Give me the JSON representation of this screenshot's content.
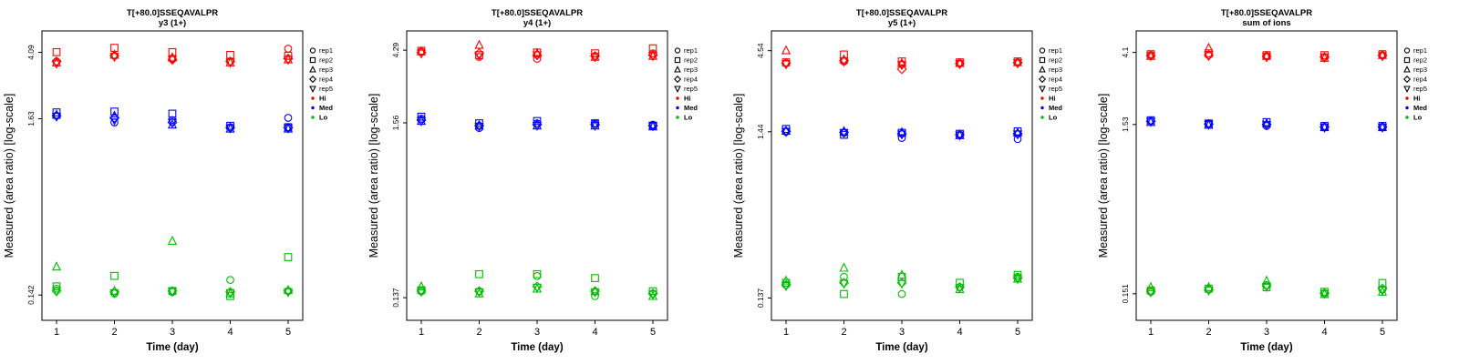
{
  "page": {
    "background": "#ffffff"
  },
  "legend": {
    "reps": [
      {
        "label": "rep1",
        "shape": "circle"
      },
      {
        "label": "rep2",
        "shape": "square"
      },
      {
        "label": "rep3",
        "shape": "triangle-up"
      },
      {
        "label": "rep4",
        "shape": "diamond"
      },
      {
        "label": "rep5",
        "shape": "triangle-down"
      }
    ],
    "levels": [
      {
        "label": "Hi",
        "color": "#FF0000"
      },
      {
        "label": "Med",
        "color": "#0000FF"
      },
      {
        "label": "Lo",
        "color": "#00BB00"
      }
    ]
  },
  "chart_data": [
    {
      "type": "scatter",
      "title": "T[+80.0]SSEQAVALPR",
      "subtitle": "y3 (1+)",
      "xlabel": "Time (day)",
      "ylabel": "Measured (area ratio) [log-scale]",
      "x": [
        1,
        2,
        3,
        4,
        5
      ],
      "y_ticks": [
        0.142,
        1.63,
        4.09
      ],
      "ylim": [
        0.1,
        5.5
      ],
      "y_scale": "log",
      "series": [
        {
          "name": "Hi",
          "color": "#FF0000",
          "values_by_day": [
            [
              3.6,
              4.1,
              3.55,
              3.6,
              3.5
            ],
            [
              3.9,
              4.35,
              3.95,
              3.9,
              3.85
            ],
            [
              3.75,
              4.1,
              3.8,
              3.7,
              3.7
            ],
            [
              3.6,
              3.95,
              3.55,
              3.6,
              3.55
            ],
            [
              4.3,
              3.9,
              3.7,
              3.75,
              3.7
            ]
          ]
        },
        {
          "name": "Med",
          "color": "#0000FF",
          "values_by_day": [
            [
              1.7,
              1.78,
              1.72,
              1.7,
              1.68
            ],
            [
              1.55,
              1.8,
              1.7,
              1.65,
              1.6
            ],
            [
              1.6,
              1.75,
              1.5,
              1.55,
              1.55
            ],
            [
              1.45,
              1.48,
              1.42,
              1.44,
              1.43
            ],
            [
              1.65,
              1.45,
              1.42,
              1.44,
              1.43
            ]
          ]
        },
        {
          "name": "Lo",
          "color": "#00BB00",
          "values_by_day": [
            [
              0.155,
              0.16,
              0.21,
              0.15,
              0.15
            ],
            [
              0.145,
              0.185,
              0.15,
              0.148,
              0.146
            ],
            [
              0.148,
              0.15,
              0.3,
              0.15,
              0.149
            ],
            [
              0.175,
              0.14,
              0.145,
              0.148,
              0.146
            ],
            [
              0.15,
              0.24,
              0.152,
              0.15,
              0.148
            ]
          ]
        }
      ]
    },
    {
      "type": "scatter",
      "title": "T[+80.0]SSEQAVALPR",
      "subtitle": "y4 (1+)",
      "xlabel": "Time (day)",
      "ylabel": "Measured (area ratio) [log-scale]",
      "x": [
        1,
        2,
        3,
        4,
        5
      ],
      "y_ticks": [
        0.137,
        1.56,
        4.29
      ],
      "ylim": [
        0.1,
        5.6
      ],
      "y_scale": "log",
      "series": [
        {
          "name": "Hi",
          "color": "#FF0000",
          "values_by_day": [
            [
              4.2,
              4.25,
              4.2,
              4.15,
              4.1
            ],
            [
              3.9,
              4.0,
              4.6,
              4.1,
              4.0
            ],
            [
              3.8,
              4.15,
              4.1,
              4.0,
              4.0
            ],
            [
              3.95,
              4.1,
              3.9,
              3.95,
              3.9
            ],
            [
              4.1,
              4.4,
              3.95,
              4.0,
              3.95
            ]
          ]
        },
        {
          "name": "Med",
          "color": "#0000FF",
          "values_by_day": [
            [
              1.65,
              1.7,
              1.6,
              1.62,
              1.6
            ],
            [
              1.45,
              1.55,
              1.5,
              1.5,
              1.48
            ],
            [
              1.55,
              1.6,
              1.5,
              1.52,
              1.5
            ],
            [
              1.55,
              1.55,
              1.5,
              1.52,
              1.5
            ],
            [
              1.52,
              1.5,
              1.48,
              1.5,
              1.49
            ]
          ]
        },
        {
          "name": "Lo",
          "color": "#00BB00",
          "values_by_day": [
            [
              0.15,
              0.152,
              0.16,
              0.15,
              0.149
            ],
            [
              0.15,
              0.19,
              0.145,
              0.15,
              0.148
            ],
            [
              0.185,
              0.19,
              0.155,
              0.16,
              0.158
            ],
            [
              0.14,
              0.18,
              0.15,
              0.15,
              0.148
            ],
            [
              0.145,
              0.15,
              0.14,
              0.145,
              0.143
            ]
          ]
        }
      ]
    },
    {
      "type": "scatter",
      "title": "T[+80.0]SSEQAVALPR",
      "subtitle": "y5 (1+)",
      "xlabel": "Time (day)",
      "ylabel": "Measured (area ratio) [log-scale]",
      "x": [
        1,
        2,
        3,
        4,
        5
      ],
      "y_ticks": [
        0.137,
        1.44,
        4.54
      ],
      "ylim": [
        0.1,
        6.0
      ],
      "y_scale": "log",
      "series": [
        {
          "name": "Hi",
          "color": "#FF0000",
          "values_by_day": [
            [
              3.8,
              3.85,
              4.55,
              3.8,
              3.75
            ],
            [
              3.9,
              4.3,
              4.0,
              3.95,
              3.9
            ],
            [
              3.75,
              3.9,
              3.8,
              3.5,
              3.7
            ],
            [
              3.8,
              3.85,
              3.8,
              3.78,
              3.76
            ],
            [
              3.85,
              3.9,
              3.85,
              3.83,
              3.8
            ]
          ]
        },
        {
          "name": "Med",
          "color": "#0000FF",
          "values_by_day": [
            [
              1.44,
              1.5,
              1.46,
              1.45,
              1.44
            ],
            [
              1.42,
              1.38,
              1.45,
              1.43,
              1.42
            ],
            [
              1.32,
              1.42,
              1.43,
              1.4,
              1.39
            ],
            [
              1.38,
              1.4,
              1.37,
              1.38,
              1.37
            ],
            [
              1.3,
              1.45,
              1.42,
              1.4,
              1.39
            ]
          ]
        },
        {
          "name": "Lo",
          "color": "#00BB00",
          "values_by_day": [
            [
              0.165,
              0.17,
              0.175,
              0.165,
              0.163
            ],
            [
              0.185,
              0.145,
              0.21,
              0.17,
              0.168
            ],
            [
              0.145,
              0.185,
              0.19,
              0.17,
              0.168
            ],
            [
              0.16,
              0.17,
              0.155,
              0.16,
              0.158
            ],
            [
              0.185,
              0.19,
              0.18,
              0.182,
              0.18
            ]
          ]
        }
      ]
    },
    {
      "type": "scatter",
      "title": "T[+80.0]SSEQAVALPR",
      "subtitle": "sum of ions",
      "xlabel": "Time (day)",
      "ylabel": "Measured (area ratio) [log-scale]",
      "x": [
        1,
        2,
        3,
        4,
        5
      ],
      "y_ticks": [
        0.151,
        1.53,
        4.1
      ],
      "ylim": [
        0.105,
        5.5
      ],
      "y_scale": "log",
      "series": [
        {
          "name": "Hi",
          "color": "#FF0000",
          "values_by_day": [
            [
              3.95,
              4.0,
              3.9,
              3.92,
              3.9
            ],
            [
              3.95,
              4.05,
              4.35,
              3.95,
              3.9
            ],
            [
              3.9,
              3.95,
              3.9,
              3.88,
              3.85
            ],
            [
              3.85,
              3.95,
              3.8,
              3.85,
              3.82
            ],
            [
              3.95,
              4.0,
              3.95,
              3.93,
              3.9
            ]
          ]
        },
        {
          "name": "Med",
          "color": "#0000FF",
          "values_by_day": [
            [
              1.6,
              1.62,
              1.58,
              1.6,
              1.59
            ],
            [
              1.55,
              1.55,
              1.52,
              1.54,
              1.53
            ],
            [
              1.5,
              1.58,
              1.55,
              1.53,
              1.52
            ],
            [
              1.48,
              1.5,
              1.47,
              1.48,
              1.47
            ],
            [
              1.48,
              1.5,
              1.47,
              1.48,
              1.47
            ]
          ]
        },
        {
          "name": "Lo",
          "color": "#00BB00",
          "values_by_day": [
            [
              0.155,
              0.158,
              0.165,
              0.156,
              0.154
            ],
            [
              0.16,
              0.162,
              0.165,
              0.16,
              0.158
            ],
            [
              0.17,
              0.165,
              0.18,
              0.168,
              0.166
            ],
            [
              0.152,
              0.155,
              0.15,
              0.152,
              0.151
            ],
            [
              0.16,
              0.175,
              0.155,
              0.162,
              0.158
            ]
          ]
        }
      ]
    }
  ]
}
